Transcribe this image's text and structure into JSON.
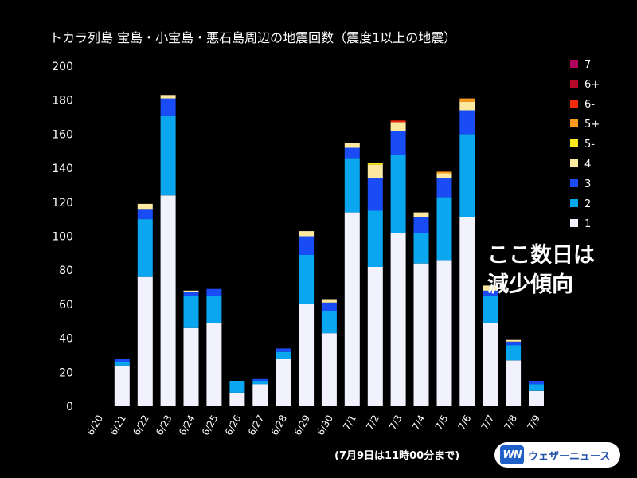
{
  "chart_data": {
    "type": "bar",
    "stacked": true,
    "title": "トカラ列島 宝島・小宝島・悪石島周辺の地震回数（震度1以上の地震）",
    "categories": [
      "6/20",
      "6/21",
      "6/22",
      "6/23",
      "6/24",
      "6/25",
      "6/26",
      "6/27",
      "6/28",
      "6/29",
      "6/30",
      "7/1",
      "7/2",
      "7/3",
      "7/4",
      "7/5",
      "7/6",
      "7/7",
      "7/8",
      "7/9"
    ],
    "ylim": [
      0,
      200
    ],
    "yticks": [
      0,
      20,
      40,
      60,
      80,
      100,
      120,
      140,
      160,
      180,
      200
    ],
    "grid": false,
    "legend_position": "right",
    "series": [
      {
        "name": "1",
        "color": "#f2f2ff",
        "values": [
          0,
          24,
          76,
          124,
          46,
          49,
          8,
          13,
          28,
          60,
          43,
          114,
          82,
          102,
          84,
          86,
          111,
          49,
          27,
          9
        ]
      },
      {
        "name": "2",
        "color": "#0aa6f0",
        "values": [
          0,
          2,
          34,
          47,
          19,
          16,
          7,
          2,
          4,
          29,
          13,
          32,
          33,
          46,
          18,
          37,
          49,
          16,
          9,
          4
        ]
      },
      {
        "name": "3",
        "color": "#1a4cf5",
        "values": [
          0,
          2,
          6,
          10,
          2,
          4,
          0,
          1,
          2,
          11,
          5,
          6,
          19,
          14,
          9,
          11,
          14,
          3,
          2,
          2
        ]
      },
      {
        "name": "4",
        "color": "#fde8a0",
        "values": [
          0,
          0,
          3,
          2,
          1,
          0,
          0,
          0,
          0,
          3,
          2,
          3,
          8,
          5,
          3,
          3,
          5,
          3,
          1,
          0
        ]
      },
      {
        "name": "5-",
        "color": "#fdea1e",
        "values": [
          0,
          0,
          0,
          0,
          0,
          0,
          0,
          0,
          0,
          0,
          0,
          0,
          1,
          0,
          0,
          0,
          0,
          0,
          0,
          0
        ]
      },
      {
        "name": "5+",
        "color": "#f99a1e",
        "values": [
          0,
          0,
          0,
          0,
          0,
          0,
          0,
          0,
          0,
          0,
          0,
          0,
          0,
          0,
          0,
          1,
          2,
          0,
          0,
          0
        ]
      },
      {
        "name": "6-",
        "color": "#f22a0c",
        "values": [
          0,
          0,
          0,
          0,
          0,
          0,
          0,
          0,
          0,
          0,
          0,
          0,
          0,
          1,
          0,
          0,
          0,
          0,
          0,
          0
        ]
      },
      {
        "name": "6+",
        "color": "#b40a28",
        "values": [
          0,
          0,
          0,
          0,
          0,
          0,
          0,
          0,
          0,
          0,
          0,
          0,
          0,
          0,
          0,
          0,
          0,
          0,
          0,
          0
        ]
      },
      {
        "name": "7",
        "color": "#b0045c",
        "values": [
          0,
          0,
          0,
          0,
          0,
          0,
          0,
          0,
          0,
          0,
          0,
          0,
          0,
          0,
          0,
          0,
          0,
          0,
          0,
          0
        ]
      }
    ],
    "annotation_lines": [
      "ここ数日は",
      "減少傾向"
    ],
    "footnote": "(7月9日は11時00分まで)"
  },
  "logo": {
    "mark": "WN",
    "text": "ウェザーニュース"
  }
}
